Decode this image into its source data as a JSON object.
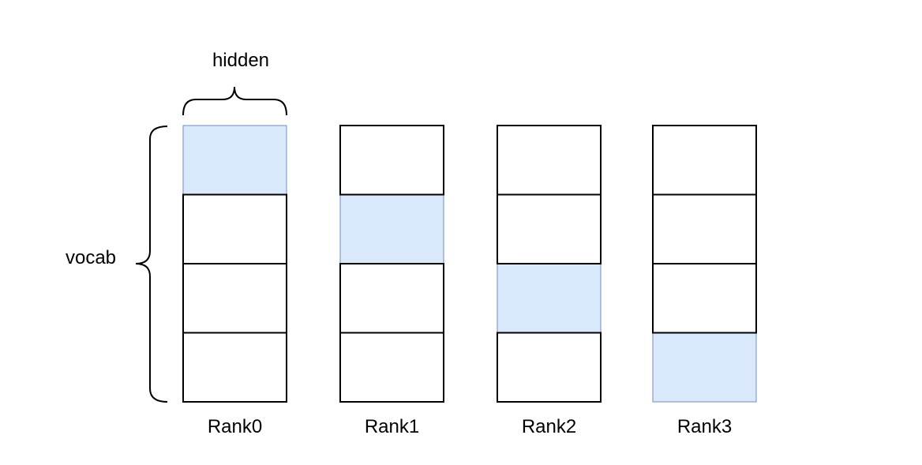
{
  "labels": {
    "hidden": "hidden",
    "vocab": "vocab"
  },
  "colors": {
    "highlight": "#dae8fc",
    "highlight_border": "#6c8ebf",
    "cell_border": "#000000",
    "background": "#ffffff"
  },
  "ranks": [
    {
      "name": "Rank0",
      "highlighted_row": 0
    },
    {
      "name": "Rank1",
      "highlighted_row": 1
    },
    {
      "name": "Rank2",
      "highlighted_row": 2
    },
    {
      "name": "Rank3",
      "highlighted_row": 3
    }
  ],
  "rows_per_rank": 4
}
